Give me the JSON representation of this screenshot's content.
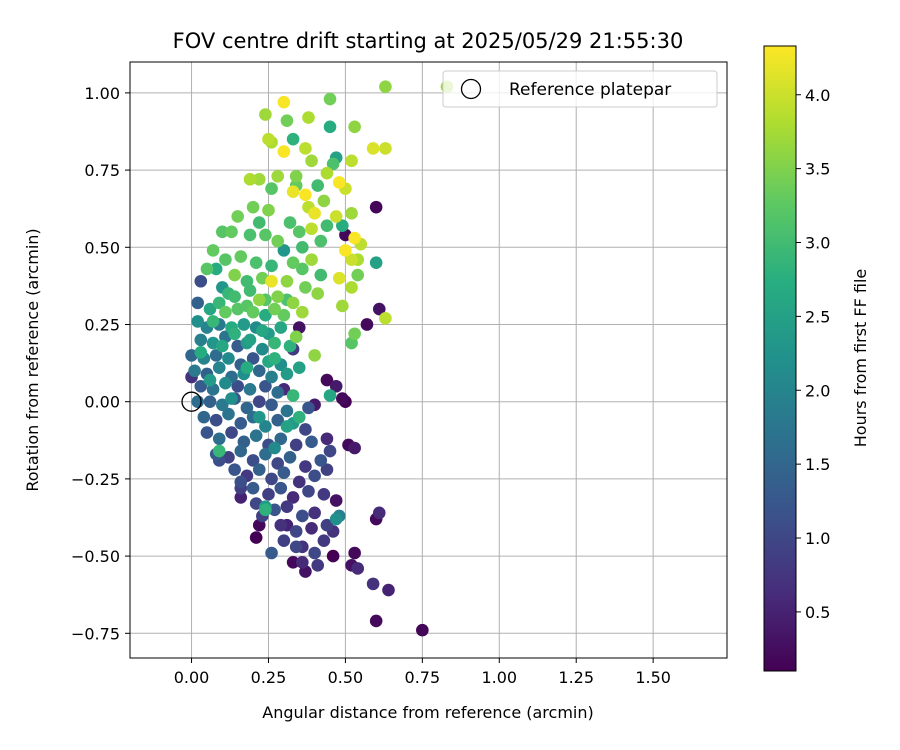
{
  "chart_data": {
    "type": "scatter",
    "title": "FOV centre drift starting at 2025/05/29 21:55:30",
    "xlabel": "Angular distance from reference (arcmin)",
    "ylabel": "Rotation from reference (arcmin)",
    "xlim": [
      -0.2,
      1.74
    ],
    "ylim": [
      -0.83,
      1.1
    ],
    "xticks": [
      0.0,
      0.25,
      0.5,
      0.75,
      1.0,
      1.25,
      1.5
    ],
    "xtick_labels": [
      "0.00",
      "0.25",
      "0.50",
      "0.75",
      "1.00",
      "1.25",
      "1.50"
    ],
    "yticks": [
      -0.75,
      -0.5,
      -0.25,
      0.0,
      0.25,
      0.5,
      0.75,
      1.0
    ],
    "ytick_labels": [
      "−0.75",
      "−0.50",
      "−0.25",
      "0.00",
      "0.25",
      "0.50",
      "0.75",
      "1.00"
    ],
    "grid": true,
    "legend": {
      "placement": "top-right",
      "entries": [
        "Reference platepar"
      ]
    },
    "reference_point": {
      "x": 0.0,
      "y": 0.0
    },
    "colorbar": {
      "label": "Hours from first FF file",
      "colormap": "viridis",
      "range": [
        0.1,
        4.33
      ],
      "ticks": [
        0.5,
        1.0,
        1.5,
        2.0,
        2.5,
        3.0,
        3.5,
        4.0
      ],
      "tick_labels": [
        "0.5",
        "1.0",
        "1.5",
        "2.0",
        "2.5",
        "3.0",
        "3.5",
        "4.0"
      ]
    },
    "points": [
      [
        0.75,
        -0.74,
        0.15
      ],
      [
        0.6,
        -0.71,
        0.2
      ],
      [
        0.64,
        -0.61,
        0.5
      ],
      [
        0.59,
        -0.59,
        0.7
      ],
      [
        0.61,
        -0.36,
        0.6
      ],
      [
        0.6,
        -0.38,
        0.2
      ],
      [
        0.52,
        -0.53,
        0.3
      ],
      [
        0.54,
        -0.54,
        0.6
      ],
      [
        0.53,
        -0.49,
        0.2
      ],
      [
        0.48,
        -0.37,
        1.9
      ],
      [
        0.47,
        -0.32,
        0.3
      ],
      [
        0.47,
        -0.38,
        2.2
      ],
      [
        0.53,
        -0.15,
        0.4
      ],
      [
        0.51,
        -0.14,
        0.2
      ],
      [
        0.46,
        -0.5,
        0.1
      ],
      [
        0.41,
        -0.53,
        0.8
      ],
      [
        0.37,
        -0.55,
        0.3
      ],
      [
        0.36,
        -0.52,
        0.6
      ],
      [
        0.34,
        -0.47,
        1.0
      ],
      [
        0.33,
        -0.52,
        0.2
      ],
      [
        0.26,
        -0.49,
        1.3
      ],
      [
        0.21,
        -0.44,
        0.1
      ],
      [
        0.22,
        -0.4,
        0.2
      ],
      [
        0.16,
        -0.31,
        0.5
      ],
      [
        0.16,
        -0.28,
        0.9
      ],
      [
        0.24,
        -0.34,
        2.4
      ],
      [
        0.24,
        -0.35,
        2.8
      ],
      [
        0.09,
        -0.19,
        1.1
      ],
      [
        0.09,
        -0.16,
        2.9
      ],
      [
        0.6,
        0.63,
        0.15
      ],
      [
        0.61,
        0.3,
        0.3
      ],
      [
        0.57,
        0.25,
        0.2
      ],
      [
        0.6,
        0.45,
        2.5
      ],
      [
        0.5,
        0.54,
        0.2
      ],
      [
        0.35,
        0.24,
        0.3
      ],
      [
        0.44,
        0.07,
        0.2
      ],
      [
        0.47,
        0.05,
        0.4
      ],
      [
        0.49,
        0.01,
        0.2
      ],
      [
        0.5,
        0.0,
        0.1
      ],
      [
        0.45,
        0.02,
        2.6
      ],
      [
        0.4,
        -0.01,
        0.4
      ],
      [
        0.29,
        0.12,
        0.5
      ],
      [
        0.33,
        0.17,
        0.8
      ],
      [
        0.3,
        0.04,
        0.6
      ],
      [
        0.83,
        1.02,
        3.7
      ],
      [
        0.63,
        1.02,
        3.6
      ],
      [
        0.3,
        0.97,
        4.3
      ],
      [
        0.24,
        0.93,
        3.7
      ],
      [
        0.45,
        0.98,
        3.4
      ],
      [
        0.38,
        0.92,
        3.8
      ],
      [
        0.31,
        0.91,
        3.4
      ],
      [
        0.53,
        0.89,
        3.6
      ],
      [
        0.45,
        0.89,
        2.7
      ],
      [
        0.33,
        0.85,
        2.8
      ],
      [
        0.25,
        0.85,
        3.9
      ],
      [
        0.26,
        0.84,
        3.8
      ],
      [
        0.37,
        0.82,
        3.9
      ],
      [
        0.3,
        0.81,
        4.3
      ],
      [
        0.59,
        0.82,
        4.1
      ],
      [
        0.63,
        0.82,
        4.0
      ],
      [
        0.39,
        0.78,
        3.7
      ],
      [
        0.47,
        0.79,
        2.5
      ],
      [
        0.52,
        0.78,
        3.9
      ],
      [
        0.46,
        0.77,
        3.1
      ],
      [
        0.44,
        0.74,
        3.8
      ],
      [
        0.34,
        0.73,
        3.5
      ],
      [
        0.28,
        0.73,
        3.7
      ],
      [
        0.19,
        0.72,
        3.8
      ],
      [
        0.22,
        0.72,
        3.7
      ],
      [
        0.34,
        0.7,
        3.3
      ],
      [
        0.41,
        0.7,
        3.0
      ],
      [
        0.48,
        0.71,
        4.3
      ],
      [
        0.5,
        0.69,
        4.0
      ],
      [
        0.26,
        0.69,
        3.2
      ],
      [
        0.33,
        0.68,
        4.2
      ],
      [
        0.37,
        0.67,
        4.3
      ],
      [
        0.43,
        0.65,
        3.6
      ],
      [
        0.38,
        0.63,
        3.9
      ],
      [
        0.4,
        0.61,
        4.2
      ],
      [
        0.47,
        0.6,
        4.0
      ],
      [
        0.52,
        0.61,
        3.7
      ],
      [
        0.2,
        0.63,
        3.4
      ],
      [
        0.25,
        0.62,
        3.5
      ],
      [
        0.15,
        0.6,
        3.4
      ],
      [
        0.22,
        0.58,
        3.0
      ],
      [
        0.32,
        0.58,
        3.1
      ],
      [
        0.35,
        0.55,
        3.2
      ],
      [
        0.39,
        0.56,
        3.9
      ],
      [
        0.44,
        0.57,
        3.0
      ],
      [
        0.49,
        0.57,
        2.7
      ],
      [
        0.53,
        0.53,
        4.3
      ],
      [
        0.5,
        0.49,
        4.3
      ],
      [
        0.52,
        0.46,
        4.0
      ],
      [
        0.54,
        0.46,
        3.8
      ],
      [
        0.55,
        0.51,
        3.9
      ],
      [
        0.1,
        0.55,
        3.2
      ],
      [
        0.13,
        0.55,
        3.3
      ],
      [
        0.19,
        0.54,
        3.1
      ],
      [
        0.24,
        0.54,
        3.2
      ],
      [
        0.28,
        0.52,
        3.4
      ],
      [
        0.3,
        0.49,
        2.3
      ],
      [
        0.36,
        0.5,
        3.0
      ],
      [
        0.42,
        0.52,
        3.1
      ],
      [
        0.07,
        0.49,
        3.3
      ],
      [
        0.11,
        0.46,
        3.2
      ],
      [
        0.16,
        0.47,
        3.3
      ],
      [
        0.21,
        0.45,
        3.1
      ],
      [
        0.26,
        0.44,
        2.9
      ],
      [
        0.33,
        0.45,
        3.3
      ],
      [
        0.39,
        0.46,
        3.7
      ],
      [
        0.36,
        0.43,
        3.2
      ],
      [
        0.42,
        0.41,
        3.0
      ],
      [
        0.54,
        0.41,
        3.4
      ],
      [
        0.48,
        0.4,
        4.1
      ],
      [
        0.05,
        0.43,
        3.2
      ],
      [
        0.08,
        0.43,
        2.7
      ],
      [
        0.14,
        0.41,
        3.5
      ],
      [
        0.18,
        0.39,
        3.0
      ],
      [
        0.23,
        0.4,
        3.4
      ],
      [
        0.26,
        0.39,
        4.2
      ],
      [
        0.31,
        0.39,
        3.6
      ],
      [
        0.37,
        0.37,
        3.4
      ],
      [
        0.41,
        0.35,
        3.6
      ],
      [
        0.52,
        0.37,
        3.8
      ],
      [
        0.03,
        0.39,
        1.1
      ],
      [
        0.1,
        0.37,
        2.3
      ],
      [
        0.12,
        0.35,
        2.9
      ],
      [
        0.19,
        0.36,
        3.0
      ],
      [
        0.24,
        0.33,
        3.2
      ],
      [
        0.28,
        0.34,
        3.5
      ],
      [
        0.33,
        0.32,
        3.6
      ],
      [
        0.49,
        0.31,
        3.7
      ],
      [
        0.63,
        0.27,
        3.9
      ],
      [
        0.02,
        0.32,
        1.4
      ],
      [
        0.06,
        0.3,
        2.6
      ],
      [
        0.09,
        0.32,
        2.9
      ],
      [
        0.15,
        0.3,
        3.2
      ],
      [
        0.2,
        0.29,
        3.3
      ],
      [
        0.24,
        0.28,
        2.7
      ],
      [
        0.3,
        0.28,
        3.3
      ],
      [
        0.36,
        0.29,
        3.7
      ],
      [
        0.53,
        0.22,
        3.4
      ],
      [
        0.52,
        0.19,
        3.2
      ],
      [
        0.02,
        0.26,
        2.2
      ],
      [
        0.05,
        0.24,
        2.0
      ],
      [
        0.09,
        0.25,
        1.8
      ],
      [
        0.13,
        0.24,
        2.7
      ],
      [
        0.17,
        0.25,
        2.4
      ],
      [
        0.21,
        0.24,
        2.1
      ],
      [
        0.25,
        0.22,
        2.4
      ],
      [
        0.29,
        0.24,
        2.6
      ],
      [
        0.34,
        0.21,
        3.5
      ],
      [
        0.03,
        0.2,
        1.9
      ],
      [
        0.07,
        0.19,
        2.3
      ],
      [
        0.11,
        0.21,
        1.7
      ],
      [
        0.15,
        0.18,
        1.3
      ],
      [
        0.19,
        0.2,
        2.5
      ],
      [
        0.23,
        0.17,
        2.1
      ],
      [
        0.27,
        0.19,
        2.9
      ],
      [
        0.32,
        0.18,
        2.8
      ],
      [
        0.4,
        0.15,
        3.6
      ],
      [
        0.0,
        0.15,
        1.5
      ],
      [
        0.04,
        0.14,
        2.0
      ],
      [
        0.08,
        0.15,
        1.6
      ],
      [
        0.12,
        0.14,
        2.1
      ],
      [
        0.16,
        0.12,
        1.4
      ],
      [
        0.2,
        0.14,
        1.2
      ],
      [
        0.25,
        0.13,
        2.6
      ],
      [
        0.29,
        0.12,
        2.2
      ],
      [
        0.35,
        0.11,
        2.5
      ],
      [
        0.01,
        0.1,
        1.8
      ],
      [
        0.05,
        0.09,
        1.4
      ],
      [
        0.09,
        0.11,
        2.0
      ],
      [
        0.13,
        0.08,
        1.6
      ],
      [
        0.17,
        0.09,
        2.2
      ],
      [
        0.22,
        0.1,
        1.5
      ],
      [
        0.26,
        0.08,
        1.9
      ],
      [
        0.31,
        0.09,
        2.4
      ],
      [
        0.0,
        0.08,
        0.7
      ],
      [
        0.03,
        0.05,
        1.3
      ],
      [
        0.07,
        0.04,
        1.7
      ],
      [
        0.11,
        0.06,
        2.1
      ],
      [
        0.15,
        0.05,
        1.1
      ],
      [
        0.19,
        0.04,
        1.8
      ],
      [
        0.24,
        0.05,
        1.2
      ],
      [
        0.28,
        0.03,
        1.6
      ],
      [
        0.33,
        0.02,
        2.9
      ],
      [
        0.02,
        0.0,
        1.6
      ],
      [
        0.06,
        0.0,
        1.4
      ],
      [
        0.1,
        -0.01,
        1.8
      ],
      [
        0.14,
        0.01,
        1.2
      ],
      [
        0.18,
        -0.02,
        1.5
      ],
      [
        0.22,
        0.0,
        1.0
      ],
      [
        0.26,
        -0.01,
        1.3
      ],
      [
        0.31,
        -0.03,
        1.7
      ],
      [
        0.38,
        -0.02,
        1.2
      ],
      [
        0.04,
        -0.05,
        1.5
      ],
      [
        0.08,
        -0.06,
        1.1
      ],
      [
        0.12,
        -0.04,
        1.7
      ],
      [
        0.16,
        -0.07,
        1.3
      ],
      [
        0.2,
        -0.05,
        1.6
      ],
      [
        0.24,
        -0.08,
        2.0
      ],
      [
        0.28,
        -0.06,
        1.4
      ],
      [
        0.33,
        -0.07,
        2.4
      ],
      [
        0.37,
        -0.09,
        1.0
      ],
      [
        0.05,
        -0.1,
        1.2
      ],
      [
        0.09,
        -0.12,
        1.6
      ],
      [
        0.13,
        -0.1,
        1.0
      ],
      [
        0.17,
        -0.13,
        1.4
      ],
      [
        0.21,
        -0.11,
        1.7
      ],
      [
        0.25,
        -0.14,
        1.1
      ],
      [
        0.29,
        -0.12,
        1.5
      ],
      [
        0.34,
        -0.14,
        0.9
      ],
      [
        0.39,
        -0.13,
        1.3
      ],
      [
        0.44,
        -0.12,
        0.6
      ],
      [
        0.08,
        -0.17,
        1.3
      ],
      [
        0.12,
        -0.18,
        0.9
      ],
      [
        0.16,
        -0.16,
        1.5
      ],
      [
        0.2,
        -0.19,
        1.1
      ],
      [
        0.24,
        -0.17,
        1.6
      ],
      [
        0.28,
        -0.2,
        1.0
      ],
      [
        0.32,
        -0.18,
        1.4
      ],
      [
        0.37,
        -0.21,
        0.8
      ],
      [
        0.42,
        -0.19,
        1.2
      ],
      [
        0.45,
        -0.16,
        1.0
      ],
      [
        0.14,
        -0.22,
        1.2
      ],
      [
        0.18,
        -0.24,
        0.8
      ],
      [
        0.22,
        -0.22,
        1.4
      ],
      [
        0.26,
        -0.25,
        1.0
      ],
      [
        0.3,
        -0.23,
        1.3
      ],
      [
        0.35,
        -0.26,
        0.7
      ],
      [
        0.4,
        -0.24,
        1.1
      ],
      [
        0.44,
        -0.22,
        0.9
      ],
      [
        0.16,
        -0.26,
        1.1
      ],
      [
        0.2,
        -0.28,
        1.3
      ],
      [
        0.25,
        -0.3,
        0.9
      ],
      [
        0.29,
        -0.28,
        1.2
      ],
      [
        0.33,
        -0.31,
        0.6
      ],
      [
        0.38,
        -0.29,
        1.0
      ],
      [
        0.43,
        -0.3,
        0.8
      ],
      [
        0.21,
        -0.33,
        1.0
      ],
      [
        0.27,
        -0.35,
        1.2
      ],
      [
        0.31,
        -0.34,
        0.8
      ],
      [
        0.36,
        -0.37,
        1.1
      ],
      [
        0.4,
        -0.36,
        0.7
      ],
      [
        0.44,
        -0.4,
        0.9
      ],
      [
        0.23,
        -0.37,
        0.9
      ],
      [
        0.29,
        -0.4,
        0.7
      ],
      [
        0.34,
        -0.42,
        1.0
      ],
      [
        0.39,
        -0.41,
        0.6
      ],
      [
        0.43,
        -0.45,
        0.8
      ],
      [
        0.3,
        -0.45,
        0.9
      ],
      [
        0.36,
        -0.47,
        0.7
      ],
      [
        0.4,
        -0.49,
        1.0
      ],
      [
        0.31,
        -0.4,
        0.5
      ],
      [
        0.46,
        -0.42,
        0.7
      ],
      [
        0.03,
        0.16,
        2.7
      ],
      [
        0.07,
        0.26,
        2.9
      ],
      [
        0.11,
        0.29,
        3.3
      ],
      [
        0.14,
        0.34,
        3.0
      ],
      [
        0.18,
        0.31,
        3.2
      ],
      [
        0.22,
        0.33,
        3.6
      ],
      [
        0.27,
        0.3,
        3.4
      ],
      [
        0.31,
        0.33,
        3.1
      ],
      [
        0.1,
        0.18,
        2.6
      ],
      [
        0.14,
        0.22,
        2.8
      ],
      [
        0.18,
        0.19,
        2.4
      ],
      [
        0.23,
        0.23,
        2.6
      ],
      [
        0.27,
        0.14,
        2.8
      ],
      [
        0.06,
        0.07,
        2.4
      ],
      [
        0.13,
        0.01,
        2.2
      ],
      [
        0.18,
        0.11,
        2.7
      ],
      [
        0.22,
        -0.05,
        2.3
      ],
      [
        0.27,
        -0.15,
        2.1
      ],
      [
        0.31,
        -0.08,
        2.5
      ],
      [
        0.35,
        -0.05,
        2.8
      ]
    ]
  }
}
